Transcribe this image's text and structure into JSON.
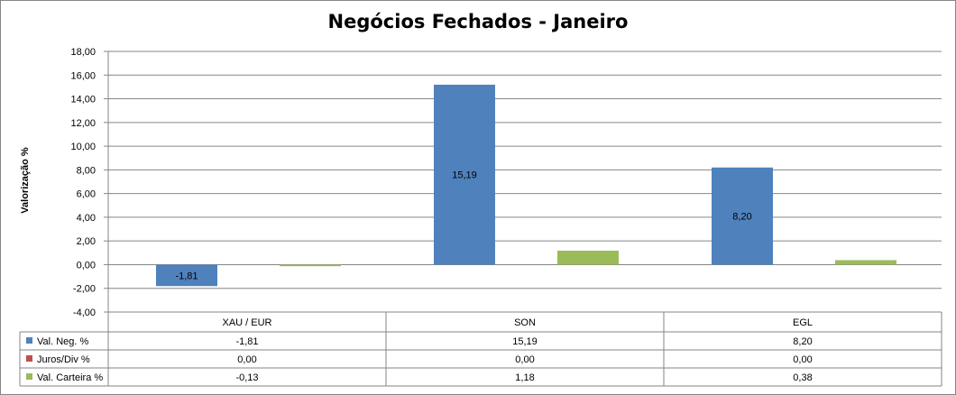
{
  "chart_data": {
    "type": "bar",
    "title": "Negócios Fechados - Janeiro",
    "ylabel": "Valorização %",
    "xlabel": "",
    "ylim": [
      -4,
      18
    ],
    "ytick_step": 2,
    "grid": true,
    "legend": "data-table",
    "categories": [
      "XAU / EUR",
      "SON",
      "EGL"
    ],
    "series": [
      {
        "name": "Val. Neg. %",
        "color": "#4f81bd",
        "values": [
          -1.81,
          15.19,
          8.2
        ],
        "show_labels": true
      },
      {
        "name": "Juros/Div %",
        "color": "#c0504d",
        "values": [
          0.0,
          0.0,
          0.0
        ],
        "show_labels": false
      },
      {
        "name": "Val. Carteira %",
        "color": "#9bbb59",
        "values": [
          -0.13,
          1.18,
          0.38
        ],
        "show_labels": false
      }
    ],
    "negative_label_color": "#ff0000",
    "table": {
      "rows": [
        {
          "name": "Val. Neg. %",
          "cells": [
            "-1,81",
            "15,19",
            "8,20"
          ]
        },
        {
          "name": "Juros/Div %",
          "cells": [
            "0,00",
            "0,00",
            "0,00"
          ]
        },
        {
          "name": "Val. Carteira %",
          "cells": [
            "-0,13",
            "1,18",
            "0,38"
          ]
        }
      ]
    }
  }
}
